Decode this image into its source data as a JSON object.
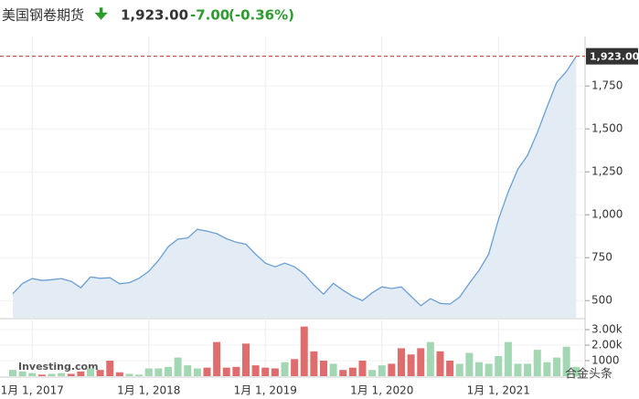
{
  "header": {
    "title": "美国钢卷期货",
    "price": "1,923.00",
    "change": "-7.00",
    "change_pct": "(-0.36%)"
  },
  "chart_data": [
    {
      "type": "area",
      "categories": [
        null,
        null,
        "1月 1, 2017",
        null,
        null,
        null,
        null,
        null,
        null,
        null,
        null,
        null,
        null,
        null,
        "1月 1, 2018",
        null,
        null,
        null,
        null,
        null,
        null,
        null,
        null,
        null,
        null,
        null,
        "1月 1, 2019",
        null,
        null,
        null,
        null,
        null,
        null,
        null,
        null,
        null,
        null,
        null,
        "1月 1, 2020",
        null,
        null,
        null,
        null,
        null,
        null,
        null,
        null,
        null,
        null,
        null,
        "1月 1, 2021",
        null,
        null,
        null,
        null,
        null,
        null,
        null,
        null
      ],
      "values": [
        540,
        600,
        628,
        617,
        622,
        628,
        612,
        575,
        638,
        630,
        633,
        598,
        605,
        630,
        670,
        734,
        814,
        858,
        865,
        915,
        905,
        890,
        860,
        840,
        828,
        770,
        718,
        697,
        718,
        697,
        654,
        590,
        537,
        600,
        560,
        525,
        500,
        545,
        580,
        570,
        580,
        525,
        470,
        511,
        484,
        479,
        520,
        601,
        676,
        771,
        973,
        1133,
        1266,
        1346,
        1479,
        1628,
        1771,
        1835,
        1923
      ],
      "color": "#6a9fd4",
      "fill": "#e3ecf5",
      "ylim": [
        400,
        1985
      ],
      "yticks": [
        500,
        750,
        {
          "value": 1000,
          "label": "1,000"
        },
        {
          "value": 1250,
          "label": "1,250"
        },
        {
          "value": 1500,
          "label": "1,500"
        },
        {
          "value": 1750,
          "label": "1,750"
        }
      ],
      "price_marker": {
        "value": 1923,
        "label": "1,923.00"
      },
      "watermark": "Investing.com"
    },
    {
      "type": "bar",
      "values": [
        400,
        300,
        200,
        100,
        150,
        200,
        150,
        300,
        500,
        400,
        1000,
        250,
        150,
        100,
        500,
        500,
        600,
        1200,
        700,
        500,
        550,
        2200,
        550,
        600,
        2100,
        700,
        550,
        500,
        900,
        1100,
        3200,
        1600,
        1000,
        800,
        400,
        550,
        1000,
        400,
        700,
        800,
        1800,
        1400,
        1800,
        2200,
        1600,
        1000,
        800,
        1500,
        900,
        800,
        1300,
        2200,
        800,
        800,
        1700,
        900,
        1200,
        1900,
        600
      ],
      "colors": [
        "#a3d6b3",
        "#a3d6b3",
        "#a3d6b3",
        "#e06d6d",
        "#a3d6b3",
        "#a3d6b3",
        "#e06d6d",
        "#e06d6d",
        "#a3d6b3",
        "#e06d6d",
        "#e06d6d",
        "#e06d6d",
        "#a3d6b3",
        "#a3d6b3",
        "#a3d6b3",
        "#a3d6b3",
        "#a3d6b3",
        "#a3d6b3",
        "#a3d6b3",
        "#a3d6b3",
        "#e06d6d",
        "#e06d6d",
        "#e06d6d",
        "#e06d6d",
        "#e06d6d",
        "#e06d6d",
        "#e06d6d",
        "#e06d6d",
        "#a3d6b3",
        "#e06d6d",
        "#e06d6d",
        "#e06d6d",
        "#e06d6d",
        "#a3d6b3",
        "#e06d6d",
        "#e06d6d",
        "#e06d6d",
        "#a3d6b3",
        "#a3d6b3",
        "#e06d6d",
        "#e06d6d",
        "#e06d6d",
        "#e06d6d",
        "#a3d6b3",
        "#e06d6d",
        "#e06d6d",
        "#a3d6b3",
        "#a3d6b3",
        "#a3d6b3",
        "#a3d6b3",
        "#a3d6b3",
        "#a3d6b3",
        "#a3d6b3",
        "#a3d6b3",
        "#a3d6b3",
        "#a3d6b3",
        "#a3d6b3",
        "#a3d6b3",
        "#a3d6b3"
      ],
      "ylim": [
        0,
        3650
      ],
      "yticks": [
        {
          "value": 1000,
          "label": "1000"
        },
        {
          "value": 2000,
          "label": "2.00k"
        },
        {
          "value": 3000,
          "label": "3.00k"
        }
      ],
      "source": "合金头条"
    }
  ]
}
